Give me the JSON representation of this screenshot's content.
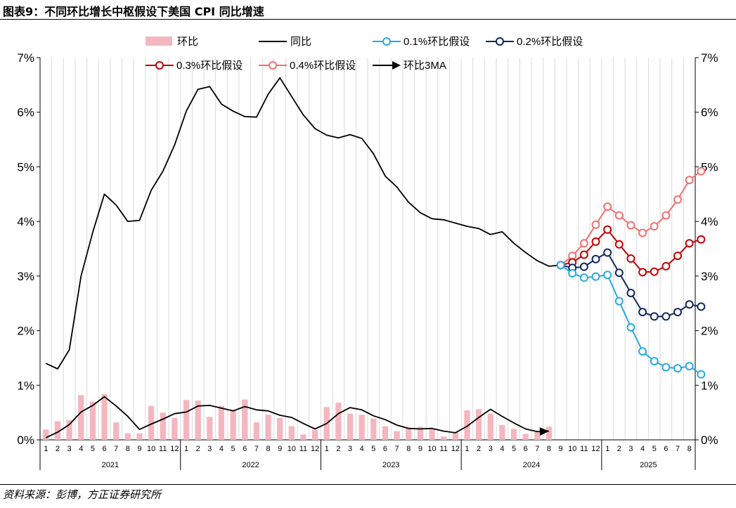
{
  "figure": {
    "title": "图表9：不同环比增长中枢假设下美国 CPI 同比增速",
    "source": "资料来源：彭博，方正证券研究所"
  },
  "chart_data": {
    "type": "bar+line",
    "y_ticks": [
      "0%",
      "1%",
      "2%",
      "3%",
      "4%",
      "5%",
      "6%",
      "7%"
    ],
    "ylim": [
      0,
      7
    ],
    "grid": "vertical lines per month",
    "legend_position": "top",
    "colors": {
      "mom_bar": "#F4B6BF",
      "yoy": "#000000",
      "s01": "#29A8DF",
      "s02": "#13275C",
      "s03": "#C00000",
      "s04": "#F07070",
      "arrow": "#000000"
    },
    "legend": {
      "mom": "环比",
      "yoy": "同比",
      "s01": "0.1%环比假设",
      "s02": "0.2%环比假设",
      "s03": "0.3%环比假设",
      "s04": "0.4%环比假设",
      "ma3": "环比3MA"
    },
    "month_labels": [
      "1",
      "2",
      "3",
      "4",
      "5",
      "6",
      "7",
      "8",
      "9",
      "10",
      "11",
      "12",
      "1",
      "2",
      "3",
      "4",
      "5",
      "6",
      "7",
      "8",
      "9",
      "10",
      "11",
      "12",
      "1",
      "2",
      "3",
      "4",
      "5",
      "6",
      "7",
      "8",
      "9",
      "10",
      "11",
      "12",
      "1",
      "2",
      "3",
      "4",
      "5",
      "6",
      "7",
      "8",
      "9",
      "10",
      "11",
      "12",
      "1",
      "2",
      "3",
      "4",
      "5",
      "6",
      "7",
      "8"
    ],
    "year_labels": [
      "2021",
      "2022",
      "2023",
      "2024",
      "2025"
    ],
    "year_spans": [
      [
        1,
        12
      ],
      [
        13,
        24
      ],
      [
        25,
        36
      ],
      [
        37,
        48
      ],
      [
        49,
        56
      ]
    ],
    "mom_values": [
      0.19,
      0.34,
      0.36,
      0.82,
      0.7,
      0.84,
      0.32,
      0.12,
      0.12,
      0.62,
      0.5,
      0.4,
      0.73,
      0.72,
      0.42,
      0.62,
      0.55,
      0.74,
      0.32,
      0.46,
      0.4,
      0.25,
      0.1,
      0.18,
      0.6,
      0.68,
      0.48,
      0.46,
      0.39,
      0.25,
      0.16,
      0.21,
      0.24,
      0.19,
      0.06,
      0.14,
      0.54,
      0.56,
      0.48,
      0.27,
      0.2,
      0.11,
      0.14,
      0.24
    ],
    "yoy_values": [
      1.4,
      1.3,
      1.65,
      3.0,
      3.8,
      4.5,
      4.3,
      4.0,
      4.02,
      4.57,
      4.92,
      5.4,
      6.02,
      6.42,
      6.47,
      6.15,
      6.02,
      5.92,
      5.91,
      6.33,
      6.63,
      6.29,
      5.95,
      5.7,
      5.58,
      5.53,
      5.59,
      5.52,
      5.24,
      4.83,
      4.63,
      4.35,
      4.16,
      4.05,
      4.03,
      3.97,
      3.91,
      3.87,
      3.76,
      3.81,
      3.6,
      3.43,
      3.28,
      3.18,
      3.2
    ],
    "ma3_values": [
      0.04,
      0.14,
      0.28,
      0.51,
      0.63,
      0.79,
      0.62,
      0.43,
      0.19,
      0.29,
      0.38,
      0.48,
      0.51,
      0.62,
      0.63,
      0.58,
      0.53,
      0.61,
      0.55,
      0.53,
      0.45,
      0.41,
      0.3,
      0.2,
      0.3,
      0.48,
      0.59,
      0.55,
      0.44,
      0.37,
      0.27,
      0.21,
      0.2,
      0.21,
      0.16,
      0.13,
      0.25,
      0.41,
      0.56,
      0.43,
      0.31,
      0.2,
      0.15,
      0.16
    ],
    "s01_values": [
      3.2,
      3.05,
      2.97,
      2.99,
      3.02,
      2.54,
      2.06,
      1.62,
      1.44,
      1.33,
      1.31,
      1.35,
      1.2
    ],
    "s02_values": [
      3.2,
      3.15,
      3.17,
      3.31,
      3.43,
      3.06,
      2.69,
      2.34,
      2.26,
      2.26,
      2.34,
      2.48,
      2.44
    ],
    "s03_values": [
      3.2,
      3.25,
      3.39,
      3.63,
      3.85,
      3.58,
      3.32,
      3.07,
      3.08,
      3.18,
      3.37,
      3.6,
      3.67
    ],
    "s04_values": [
      3.2,
      3.37,
      3.6,
      3.94,
      4.27,
      4.11,
      3.93,
      3.79,
      3.91,
      4.11,
      4.4,
      4.76,
      4.92
    ]
  }
}
